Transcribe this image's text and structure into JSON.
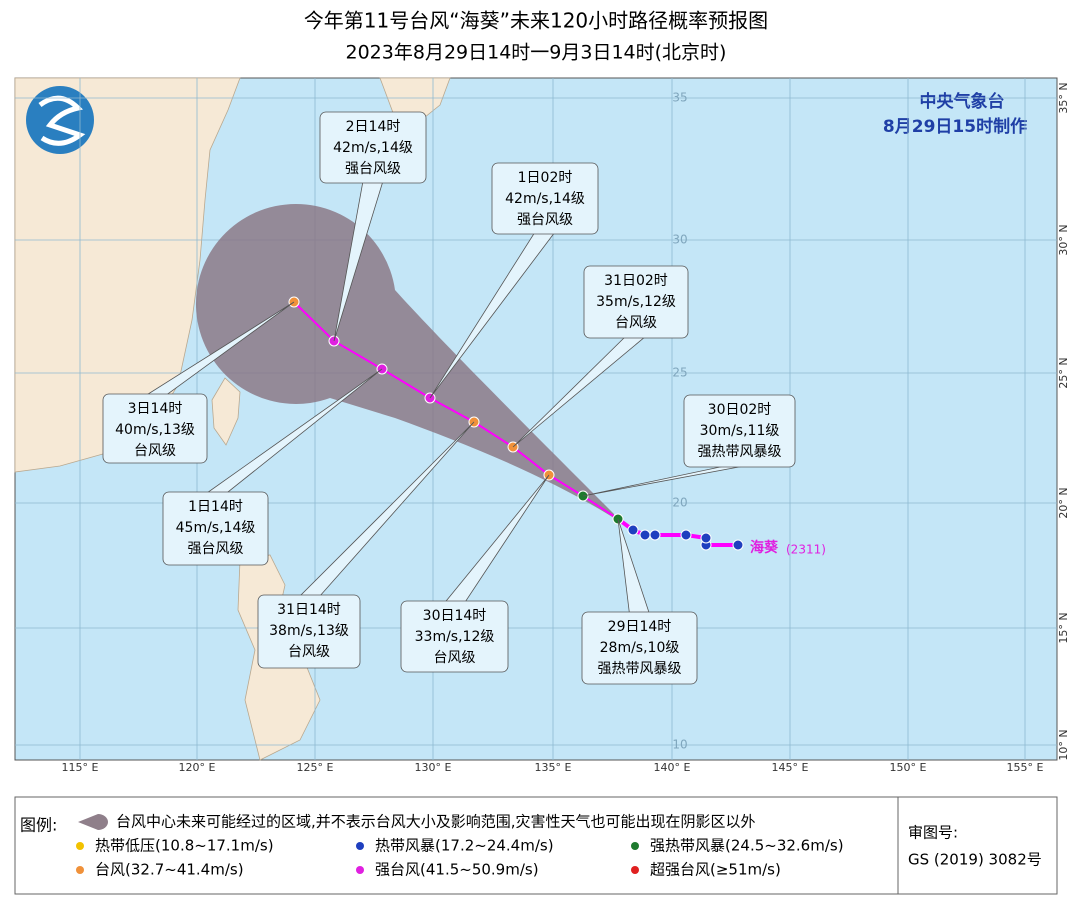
{
  "header": {
    "title": "今年第11号台风“海葵”未来120小时路径概率预报图",
    "subtitle": "2023年8月29日14时一9月3日14时(北京时)"
  },
  "agency": {
    "name": "中央气象台",
    "made": "8月29日15时制作"
  },
  "map": {
    "lon_labels": [
      "115° E",
      "120° E",
      "125° E",
      "130° E",
      "135° E",
      "140° E",
      "145° E",
      "150° E",
      "155° E"
    ],
    "lat_labels": [
      "35° N",
      "30° N",
      "25° N",
      "20° N",
      "15° N",
      "10° N"
    ],
    "grid_lat_labels": [
      "35",
      "30",
      "25",
      "20",
      "15",
      "10"
    ]
  },
  "storm": {
    "name": "海葵",
    "code": "(2311)"
  },
  "callouts": [
    {
      "time": "2日14时",
      "wind": "42m/s,14级",
      "grade": "强台风级"
    },
    {
      "time": "1日02时",
      "wind": "42m/s,14级",
      "grade": "强台风级"
    },
    {
      "time": "31日02时",
      "wind": "35m/s,12级",
      "grade": "台风级"
    },
    {
      "time": "30日02时",
      "wind": "30m/s,11级",
      "grade": "强热带风暴级"
    },
    {
      "time": "3日14时",
      "wind": "40m/s,13级",
      "grade": "台风级"
    },
    {
      "time": "1日14时",
      "wind": "45m/s,14级",
      "grade": "强台风级"
    },
    {
      "time": "31日14时",
      "wind": "38m/s,13级",
      "grade": "台风级"
    },
    {
      "time": "30日14时",
      "wind": "33m/s,12级",
      "grade": "台风级"
    },
    {
      "time": "29日14时",
      "wind": "28m/s,10级",
      "grade": "强热带风暴级"
    }
  ],
  "legend": {
    "title": "图例:",
    "area": "台风中心未来可能经过的区域,并不表示台风大小及影响范围,灾害性天气也可能出现在阴影区以外",
    "items": [
      {
        "label": "热带低压(10.8~17.1m/s)",
        "color": "#f2c200"
      },
      {
        "label": "热带风暴(17.2~24.4m/s)",
        "color": "#1f3fbf"
      },
      {
        "label": "强热带风暴(24.5~32.6m/s)",
        "color": "#1e7a2e"
      },
      {
        "label": "台风(32.7~41.4m/s)",
        "color": "#f0913a"
      },
      {
        "label": "强台风(41.5~50.9m/s)",
        "color": "#e020e0"
      },
      {
        "label": "超强台风(≥51m/s)",
        "color": "#e02020"
      }
    ]
  },
  "approval": {
    "label": "审图号:",
    "number": "GS (2019) 3082号"
  }
}
